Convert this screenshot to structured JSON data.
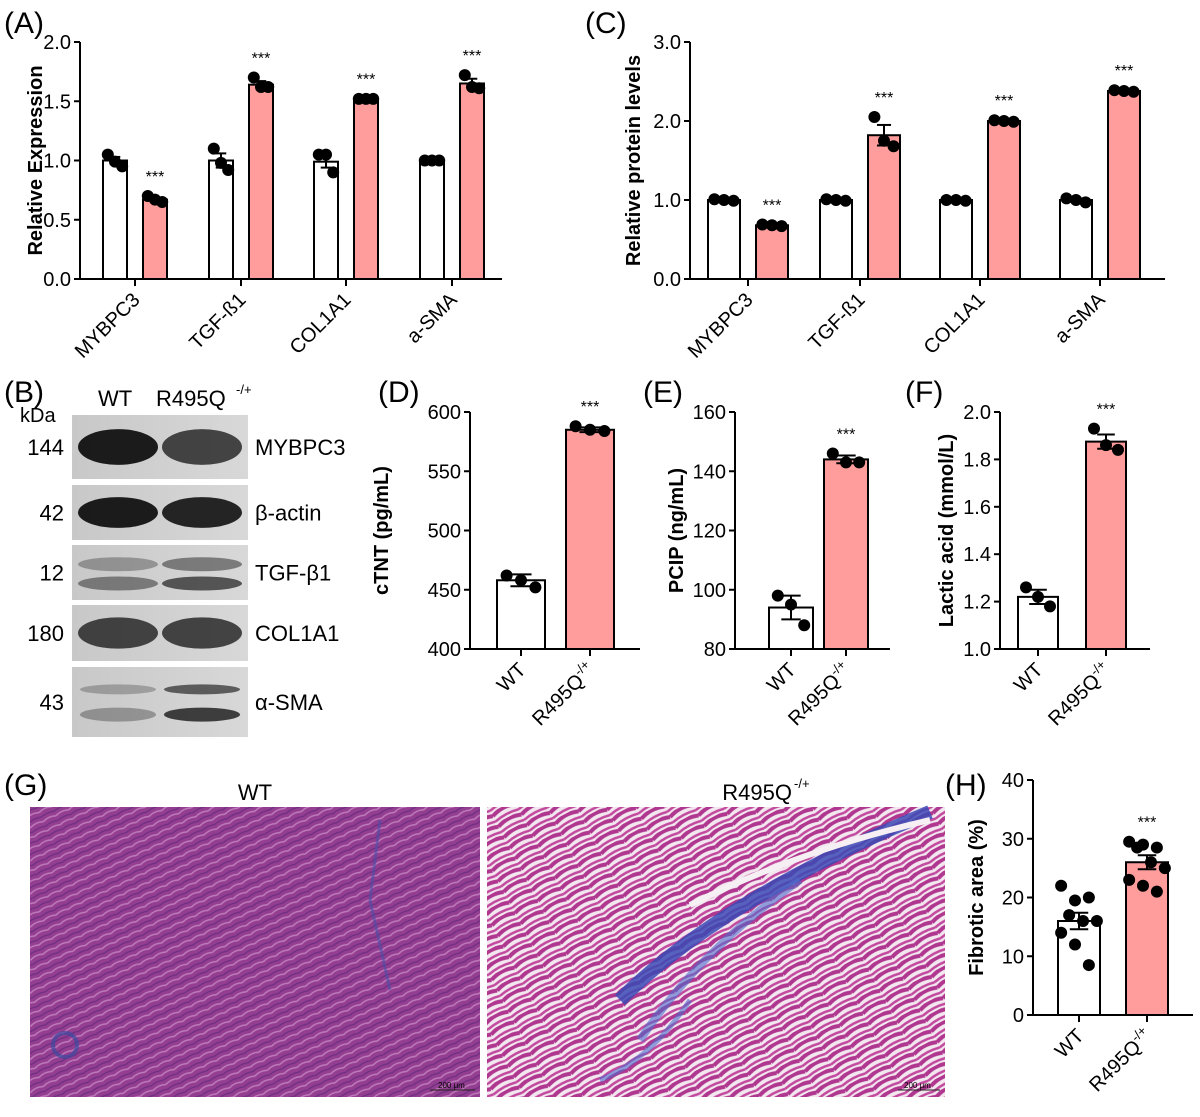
{
  "panel_labels": {
    "A": "(A)",
    "B": "(B)",
    "C": "(C)",
    "D": "(D)",
    "E": "(E)",
    "F": "(F)",
    "G": "(G)",
    "H": "(H)"
  },
  "colors": {
    "wt": "#ffffff",
    "mutant": "#ff9d9d",
    "axis": "#000000"
  },
  "western_blot": {
    "unit_label": "kDa",
    "lane_labels": [
      "WT",
      "R495Q",
      "-/+"
    ],
    "rows": [
      {
        "kda": "144",
        "protein": "MYBPC3"
      },
      {
        "kda": "42",
        "protein": "β-actin"
      },
      {
        "kda": "12",
        "protein": "TGF-β1"
      },
      {
        "kda": "180",
        "protein": "COL1A1"
      },
      {
        "kda": "43",
        "protein": "α-SMA"
      }
    ]
  },
  "histology": {
    "left_title": "WT",
    "right_title_base": "R495Q",
    "right_title_sup": "-/+",
    "scale_bar": "200 μm"
  },
  "chart_data": [
    {
      "id": "A",
      "type": "bar",
      "ylabel": "Relative Expression",
      "ylim": [
        0,
        2.0
      ],
      "yticks": [
        "0.0",
        "0.5",
        "1.0",
        "1.5",
        "2.0"
      ],
      "categories": [
        "MYBPC3",
        "TGF-ß1",
        "COL1A1",
        "a-SMA"
      ],
      "series": [
        {
          "name": "WT",
          "values": [
            1.0,
            1.0,
            0.99,
            1.0
          ],
          "sem": [
            0.03,
            0.06,
            0.05,
            0.005
          ],
          "points": [
            [
              1.05,
              0.99,
              0.95
            ],
            [
              1.1,
              0.98,
              0.92
            ],
            [
              1.05,
              1.05,
              0.9
            ],
            [
              1.0,
              1.0,
              1.0
            ]
          ]
        },
        {
          "name": "R495Q-/+",
          "values": [
            0.67,
            1.64,
            1.52,
            1.65
          ],
          "sem": [
            0.01,
            0.03,
            0.005,
            0.04
          ],
          "points": [
            [
              0.7,
              0.67,
              0.65
            ],
            [
              1.7,
              1.62,
              1.62
            ],
            [
              1.52,
              1.52,
              1.52
            ],
            [
              1.72,
              1.62,
              1.61
            ]
          ]
        }
      ],
      "significance": [
        "***",
        "***",
        "***",
        "***"
      ]
    },
    {
      "id": "C",
      "type": "bar",
      "ylabel": "Relative protein levels",
      "ylim": [
        0,
        3.0
      ],
      "yticks": [
        "0.0",
        "1.0",
        "2.0",
        "3.0"
      ],
      "categories": [
        "MYBPC3",
        "TGF-ß1",
        "COL1A1",
        "a-SMA"
      ],
      "series": [
        {
          "name": "WT",
          "values": [
            1.0,
            1.0,
            1.0,
            1.0
          ],
          "sem": [
            0.01,
            0.01,
            0.01,
            0.02
          ],
          "points": [
            [
              1.01,
              1.0,
              0.99
            ],
            [
              1.01,
              1.0,
              0.99
            ],
            [
              1.0,
              1.0,
              0.99
            ],
            [
              1.02,
              1.0,
              0.97
            ]
          ]
        },
        {
          "name": "R495Q-/+",
          "values": [
            0.68,
            1.82,
            2.0,
            2.38
          ],
          "sem": [
            0.01,
            0.13,
            0.01,
            0.01
          ],
          "points": [
            [
              0.69,
              0.68,
              0.67
            ],
            [
              2.05,
              1.75,
              1.68
            ],
            [
              2.01,
              2.0,
              1.99
            ],
            [
              2.39,
              2.38,
              2.37
            ]
          ]
        }
      ],
      "significance": [
        "***",
        "***",
        "***",
        "***"
      ]
    },
    {
      "id": "D",
      "type": "bar",
      "ylabel": "cTNT (pg/mL)",
      "ylim": [
        400,
        600
      ],
      "yticks": [
        "400",
        "450",
        "500",
        "550",
        "600"
      ],
      "categories": [
        "WT",
        "R495Q-/+"
      ],
      "series": [
        {
          "name": "values",
          "values": [
            458,
            585
          ],
          "sem": [
            5,
            2
          ],
          "points": [
            [
              462,
              458,
              452
            ],
            [
              588,
              585,
              584
            ]
          ]
        }
      ],
      "significance": [
        "",
        "***"
      ]
    },
    {
      "id": "E",
      "type": "bar",
      "ylabel": "PCIP (ng/mL)",
      "ylim": [
        80,
        160
      ],
      "yticks": [
        "80",
        "100",
        "120",
        "140",
        "160"
      ],
      "categories": [
        "WT",
        "R495Q-/+"
      ],
      "series": [
        {
          "name": "values",
          "values": [
            94,
            144
          ],
          "sem": [
            4,
            1.3
          ],
          "points": [
            [
              98,
              95,
              88
            ],
            [
              146,
              143,
              143
            ]
          ]
        }
      ],
      "significance": [
        "",
        "***"
      ]
    },
    {
      "id": "F",
      "type": "bar",
      "ylabel": "Lactic acid (mmol/L)",
      "ylim": [
        1.0,
        2.0
      ],
      "yticks": [
        "1.0",
        "1.2",
        "1.4",
        "1.6",
        "1.8",
        "2.0"
      ],
      "categories": [
        "WT",
        "R495Q-/+"
      ],
      "series": [
        {
          "name": "values",
          "values": [
            1.22,
            1.875
          ],
          "sem": [
            0.03,
            0.03
          ],
          "points": [
            [
              1.26,
              1.22,
              1.18
            ],
            [
              1.93,
              1.86,
              1.84
            ]
          ]
        }
      ],
      "significance": [
        "",
        "***"
      ]
    },
    {
      "id": "H",
      "type": "bar",
      "ylabel": "Fibrotic area (%)",
      "ylim": [
        0,
        40
      ],
      "yticks": [
        "0",
        "10",
        "20",
        "30",
        "40"
      ],
      "categories": [
        "WT",
        "R495Q-/+"
      ],
      "series": [
        {
          "name": "values",
          "values": [
            16,
            26
          ],
          "sem": [
            1.4,
            1.2
          ],
          "points": [
            [
              22,
              19.5,
              20,
              17,
              16,
              16,
              14,
              12,
              8.5
            ],
            [
              29.5,
              29,
              28.5,
              28.5,
              26,
              25,
              23,
              22,
              21
            ]
          ]
        }
      ],
      "significance": [
        "",
        "***"
      ]
    }
  ]
}
